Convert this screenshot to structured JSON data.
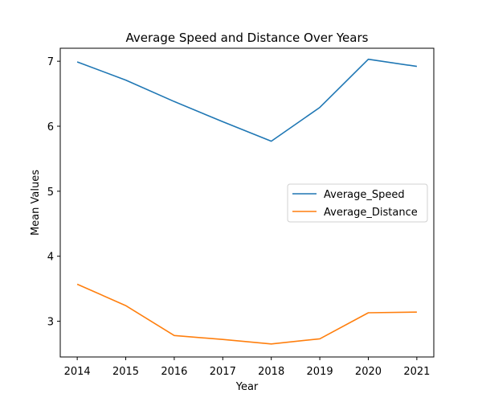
{
  "chart_data": {
    "type": "line",
    "title": "Average Speed and Distance Over Years",
    "xlabel": "Year",
    "ylabel": "Mean Values",
    "x": [
      2014,
      2015,
      2016,
      2017,
      2018,
      2019,
      2020,
      2021
    ],
    "xlim": [
      2013.65,
      2021.35
    ],
    "ylim": [
      2.45,
      7.2
    ],
    "yticks": [
      3,
      4,
      5,
      6,
      7
    ],
    "grid": false,
    "legend_position": "center-right",
    "series": [
      {
        "name": "Average_Speed",
        "color": "#1f77b4",
        "values": [
          6.99,
          6.71,
          6.38,
          6.07,
          5.77,
          6.29,
          7.03,
          6.92
        ]
      },
      {
        "name": "Average_Distance",
        "color": "#ff7f0e",
        "values": [
          3.57,
          3.24,
          2.78,
          2.72,
          2.65,
          2.73,
          3.13,
          3.14
        ]
      }
    ]
  }
}
